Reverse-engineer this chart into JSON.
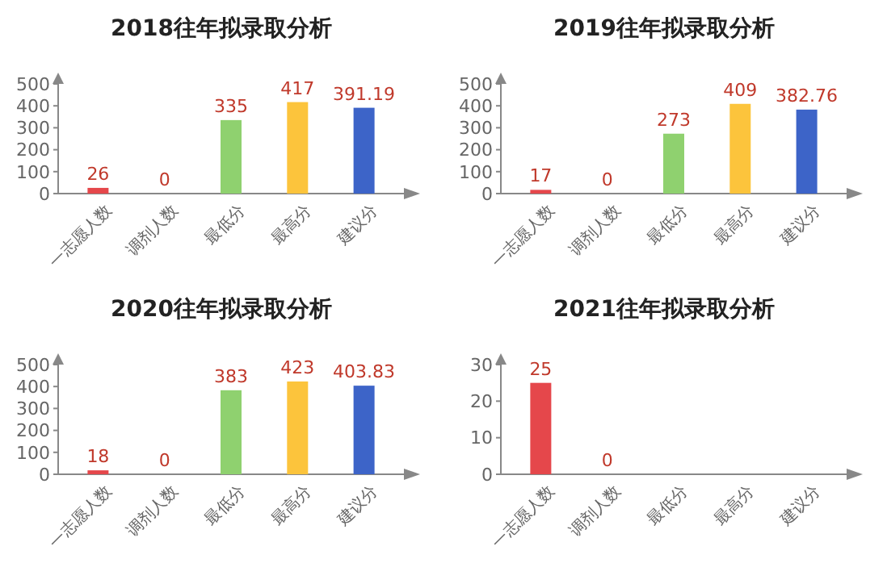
{
  "chart_data": [
    {
      "type": "bar",
      "title": "2018往年拟录取分析",
      "categories": [
        "一志愿人数",
        "调剂人数",
        "最低分",
        "最高分",
        "建议分"
      ],
      "values": [
        26,
        0,
        335,
        417,
        391.19
      ],
      "colors": [
        "#e5474b",
        "#e5474b",
        "#8fd16f",
        "#fcc43c",
        "#3d64c8"
      ],
      "ylim": [
        0,
        500
      ],
      "yticks": [
        0,
        100,
        200,
        300,
        400,
        500
      ],
      "data_labels": true
    },
    {
      "type": "bar",
      "title": "2019往年拟录取分析",
      "categories": [
        "一志愿人数",
        "调剂人数",
        "最低分",
        "最高分",
        "建议分"
      ],
      "values": [
        17,
        0,
        273,
        409,
        382.76
      ],
      "colors": [
        "#e5474b",
        "#e5474b",
        "#8fd16f",
        "#fcc43c",
        "#3d64c8"
      ],
      "ylim": [
        0,
        500
      ],
      "yticks": [
        0,
        100,
        200,
        300,
        400,
        500
      ],
      "data_labels": true
    },
    {
      "type": "bar",
      "title": "2020往年拟录取分析",
      "categories": [
        "一志愿人数",
        "调剂人数",
        "最低分",
        "最高分",
        "建议分"
      ],
      "values": [
        18,
        0,
        383,
        423,
        403.83
      ],
      "colors": [
        "#e5474b",
        "#e5474b",
        "#8fd16f",
        "#fcc43c",
        "#3d64c8"
      ],
      "ylim": [
        0,
        500
      ],
      "yticks": [
        0,
        100,
        200,
        300,
        400,
        500
      ],
      "data_labels": true
    },
    {
      "type": "bar",
      "title": "2021往年拟录取分析",
      "categories": [
        "一志愿人数",
        "调剂人数",
        "最低分",
        "最高分",
        "建议分"
      ],
      "values": [
        25,
        0,
        null,
        null,
        null
      ],
      "colors": [
        "#e5474b",
        "#e5474b",
        null,
        null,
        null
      ],
      "ylim": [
        0,
        30
      ],
      "yticks": [
        0,
        10,
        20,
        30
      ],
      "data_labels": true
    }
  ]
}
